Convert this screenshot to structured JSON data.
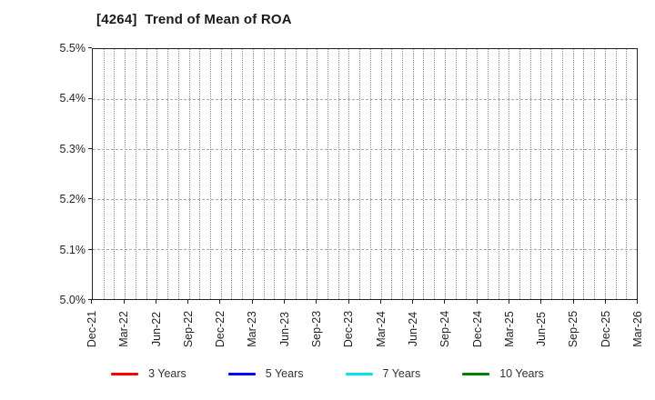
{
  "chart": {
    "title": "[4264]  Trend of Mean of ROA"
  },
  "chart_data": {
    "type": "line",
    "title": "[4264]  Trend of Mean of ROA",
    "xlabel": "",
    "ylabel": "",
    "x_tick_labels": [
      "Dec-21",
      "Mar-22",
      "Jun-22",
      "Sep-22",
      "Dec-22",
      "Mar-23",
      "Jun-23",
      "Sep-23",
      "Dec-23",
      "Mar-24",
      "Jun-24",
      "Sep-24",
      "Dec-24",
      "Mar-25",
      "Jun-25",
      "Sep-25",
      "Dec-25",
      "Mar-26"
    ],
    "months_per_labeled_tick": 3,
    "minor_vertical_grid": "monthly",
    "y_tick_labels": [
      "5.0%",
      "5.1%",
      "5.2%",
      "5.3%",
      "5.4%",
      "5.5%"
    ],
    "ylim": [
      5.0,
      5.5
    ],
    "grid": "on",
    "legend_position": "bottom",
    "series": [
      {
        "name": "3 Years",
        "color": "#ff0000",
        "values": []
      },
      {
        "name": "5 Years",
        "color": "#0000ff",
        "values": []
      },
      {
        "name": "7 Years",
        "color": "#00e5ee",
        "values": []
      },
      {
        "name": "10 Years",
        "color": "#008000",
        "values": []
      }
    ]
  },
  "colors": {
    "background": "#ffffff",
    "plot_border": "#222222",
    "grid_vertical": "#8f8f8f",
    "grid_horizontal": "#a9a9a9",
    "text": "#262626"
  }
}
